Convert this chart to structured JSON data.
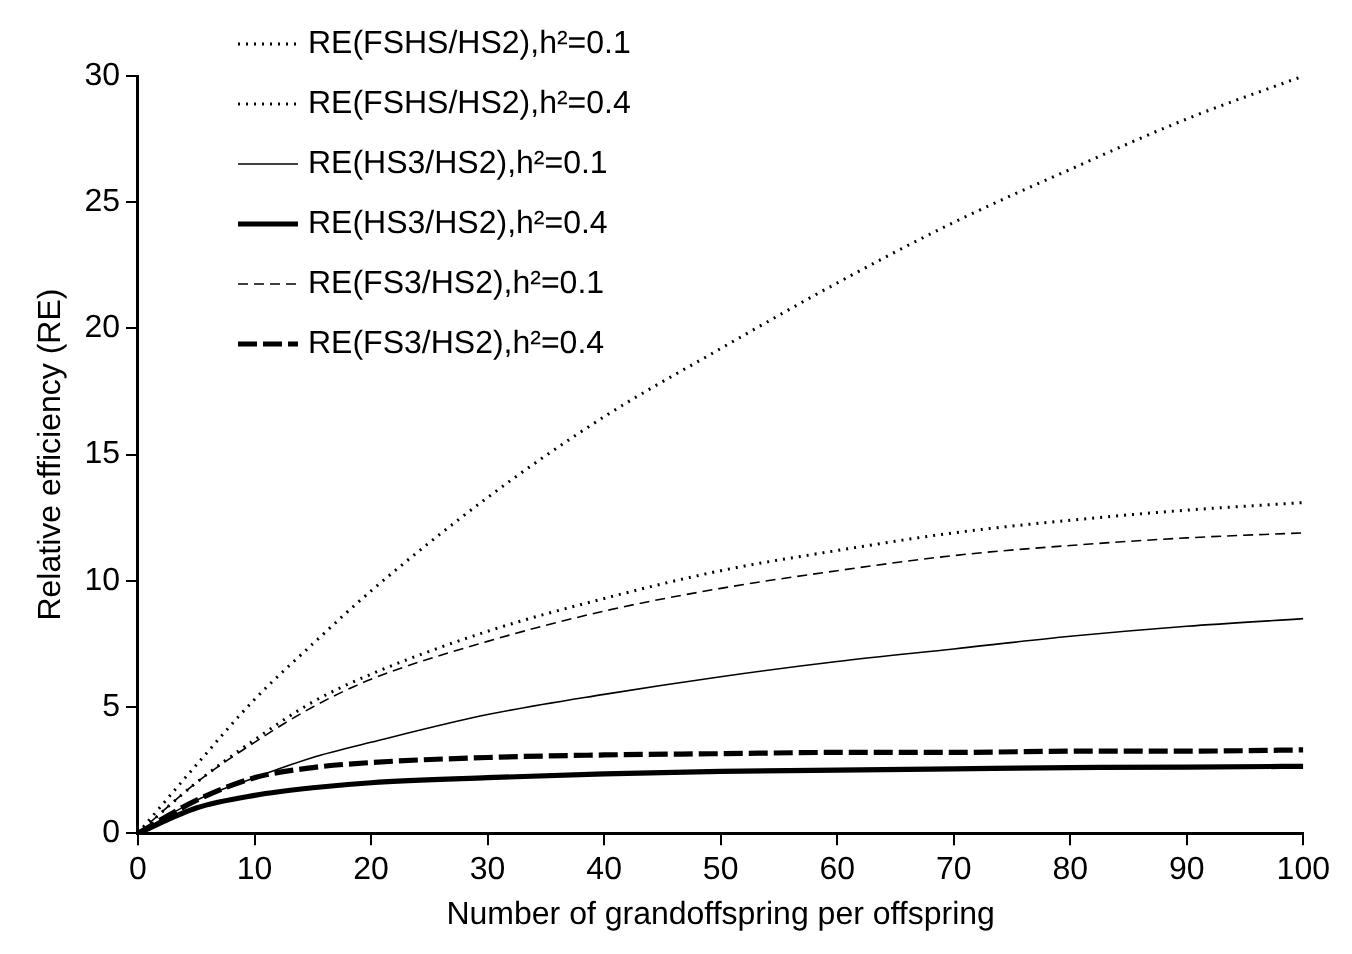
{
  "chart_data": {
    "type": "line",
    "xlabel": "Number of grandoffspring per offspring",
    "ylabel": "Relative efficiency (RE)",
    "x": [
      0,
      5,
      10,
      15,
      20,
      30,
      40,
      50,
      60,
      70,
      80,
      90,
      100
    ],
    "xlim": [
      0,
      100
    ],
    "xticks": [
      0,
      10,
      20,
      30,
      40,
      50,
      60,
      70,
      80,
      90,
      100
    ],
    "ylim": [
      0,
      30
    ],
    "yticks": [
      0,
      5,
      10,
      15,
      20,
      25,
      30
    ],
    "grid": false,
    "legend": "top left",
    "marker": "none",
    "series": [
      {
        "name": "RE(FSHS/HS2),h²=0.1",
        "color": "#000000",
        "line_style": "dotted",
        "values": [
          0,
          2.7,
          5.3,
          7.5,
          9.6,
          13.3,
          16.5,
          19.2,
          21.8,
          24.2,
          26.3,
          28.3,
          30
        ]
      },
      {
        "name": "RE(FSHS/HS2),h²=0.4",
        "color": "#000000",
        "line_style": "dotted",
        "values": [
          0,
          2,
          3.7,
          5.2,
          6.3,
          8,
          9.3,
          10.4,
          11.2,
          11.9,
          12.4,
          12.8,
          13.1
        ]
      },
      {
        "name": "RE(HS3/HS2),h²=0.1",
        "color": "#000000",
        "line_style": "solid",
        "values": [
          0,
          1.3,
          2.2,
          3,
          3.6,
          4.7,
          5.5,
          6.2,
          6.8,
          7.3,
          7.8,
          8.2,
          8.5
        ]
      },
      {
        "name": "RE(HS3/HS2),h²=0.4",
        "color": "#000000",
        "line_style": "solid",
        "values": [
          0,
          1,
          1.5,
          1.8,
          2,
          2.2,
          2.35,
          2.45,
          2.5,
          2.55,
          2.6,
          2.62,
          2.65
        ]
      },
      {
        "name": "RE(FS3/HS2),h²=0.1",
        "color": "#000000",
        "line_style": "dashed",
        "values": [
          0,
          2,
          3.6,
          5,
          6.1,
          7.6,
          8.8,
          9.7,
          10.4,
          11,
          11.4,
          11.7,
          11.9
        ]
      },
      {
        "name": "RE(FS3/HS2),h²=0.4",
        "color": "#000000",
        "line_style": "dashed",
        "values": [
          0,
          1.3,
          2.2,
          2.6,
          2.8,
          3,
          3.1,
          3.15,
          3.2,
          3.2,
          3.25,
          3.25,
          3.3
        ]
      }
    ]
  }
}
